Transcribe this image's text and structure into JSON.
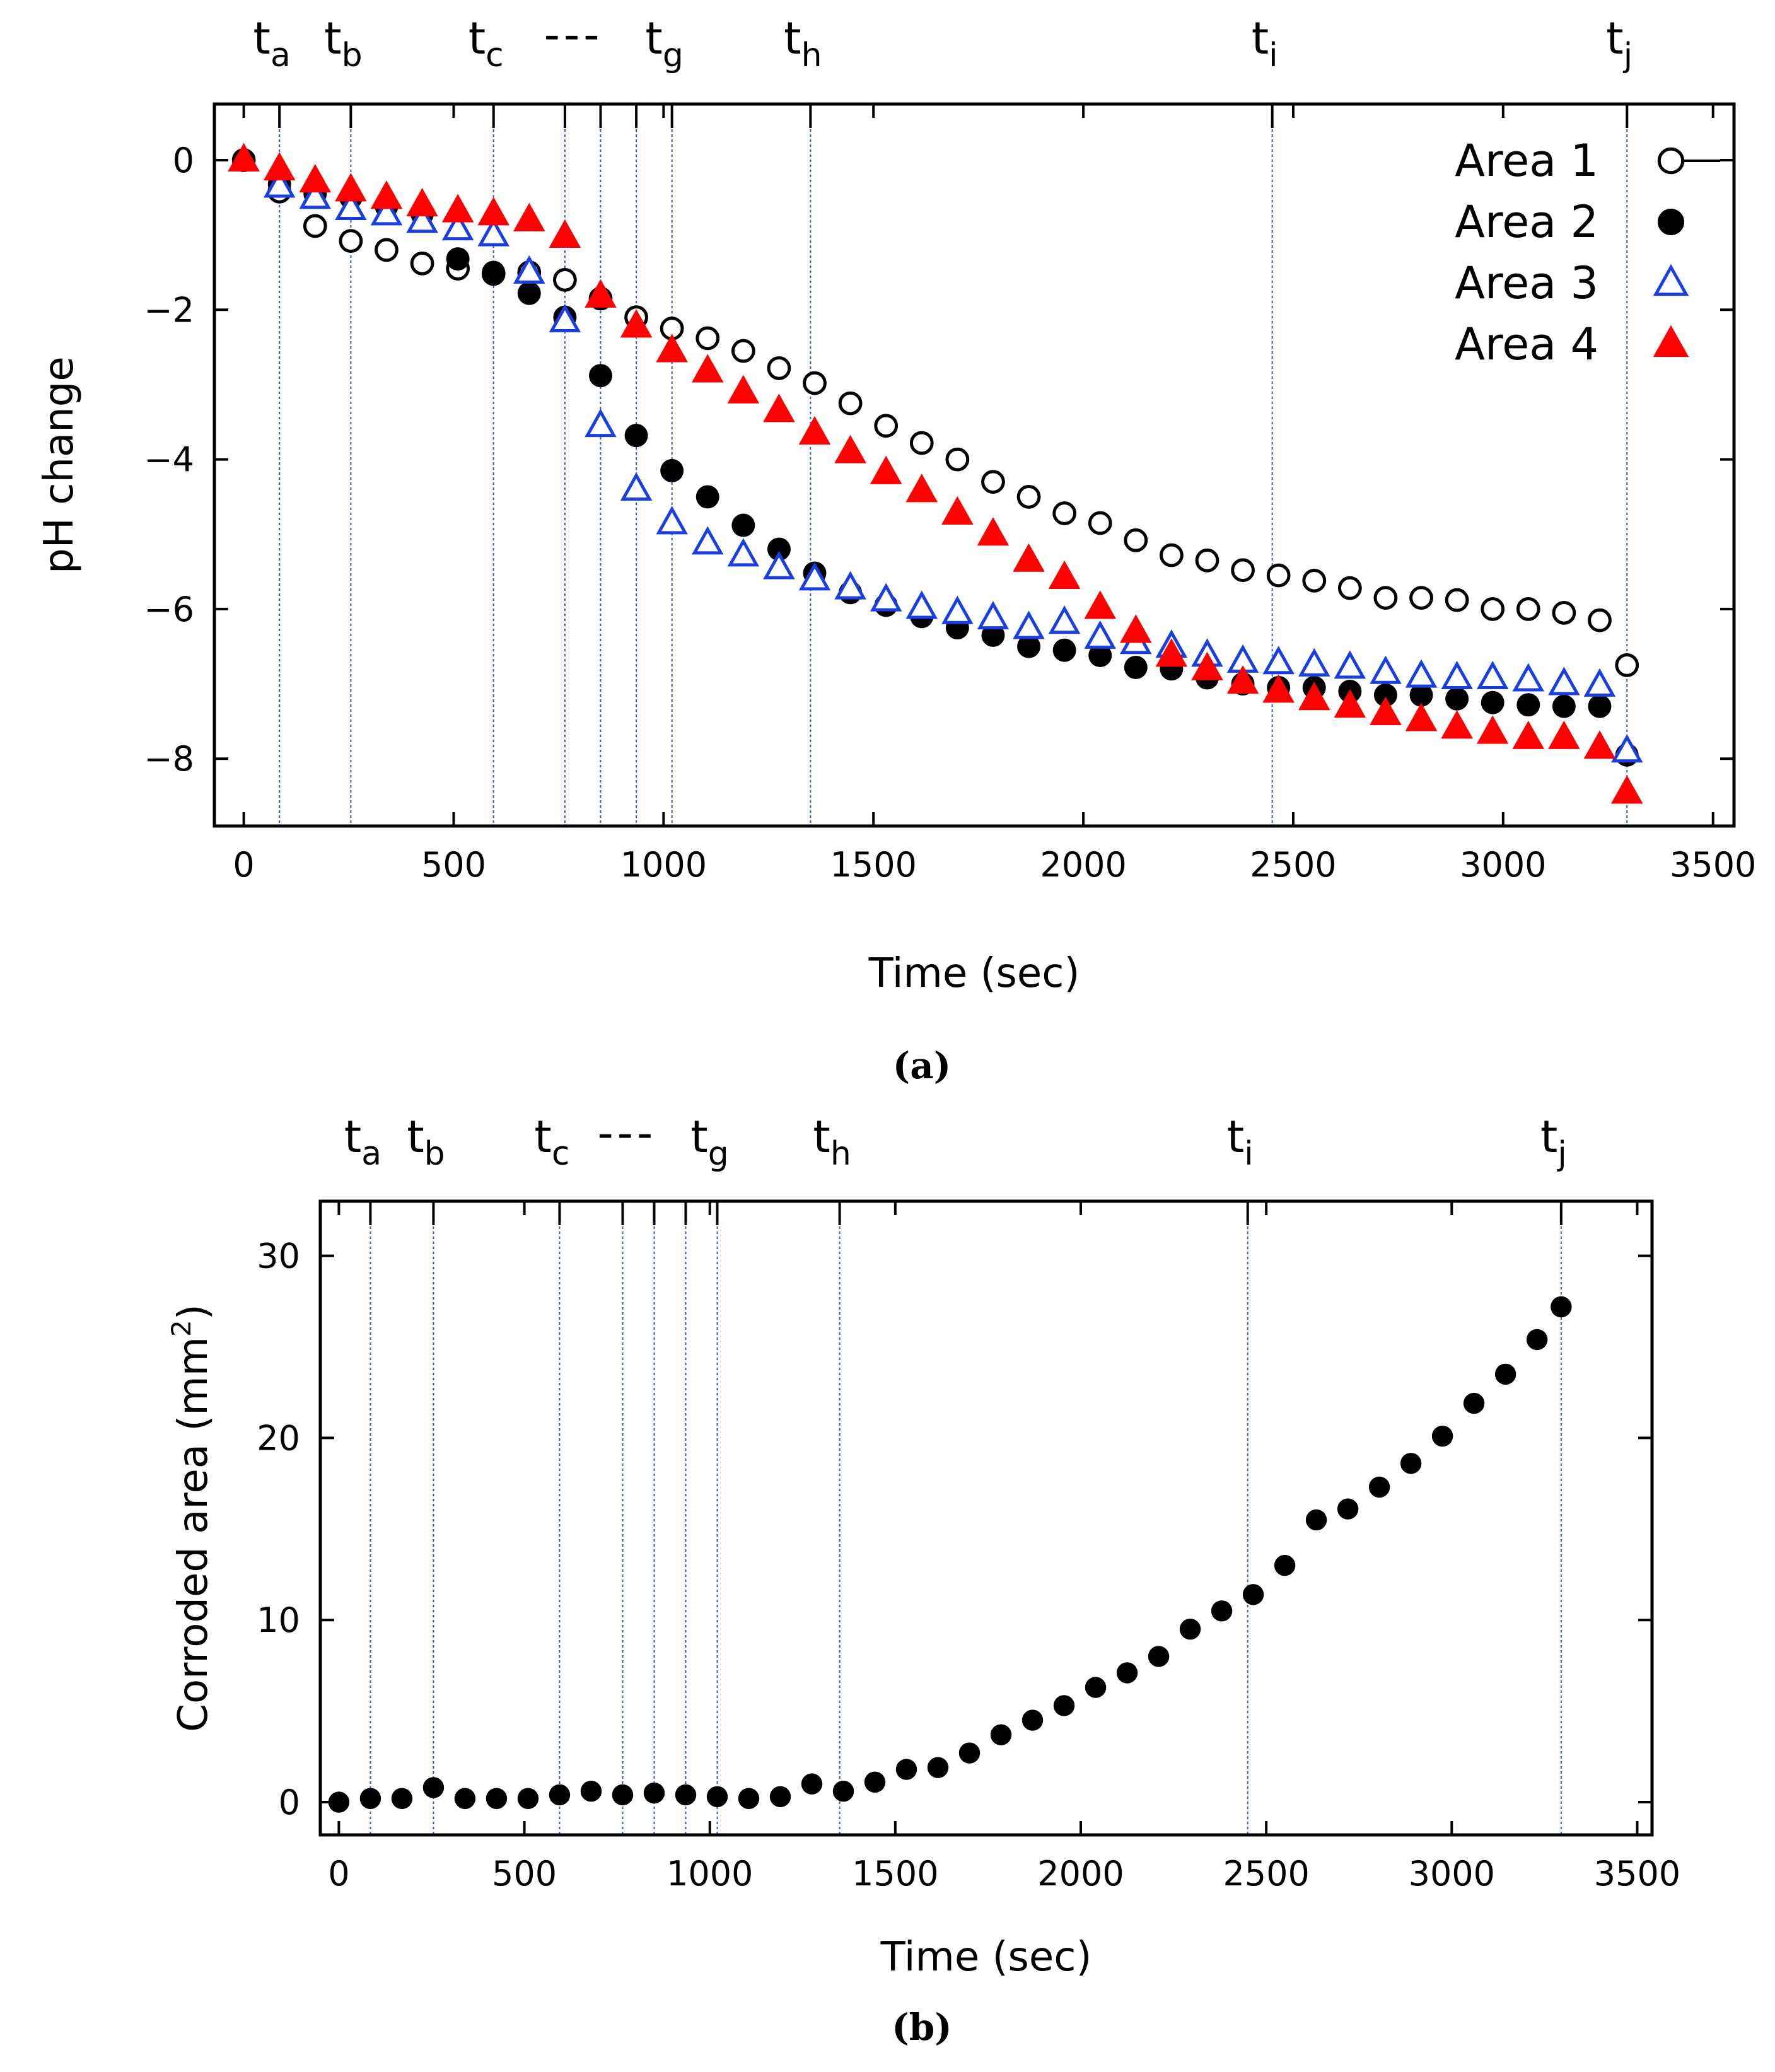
{
  "chart_data": [
    {
      "id": "a",
      "type": "scatter",
      "caption": "(a)",
      "xlabel": "Time (sec)",
      "ylabel": "pH change",
      "xlim": [
        -70,
        3550
      ],
      "ylim": [
        -8.9,
        0.75
      ],
      "xticks": [
        0,
        500,
        1000,
        1500,
        2000,
        2500,
        3000,
        3500
      ],
      "xtick_labels": [
        "0",
        "500",
        "1000",
        "1500",
        "2000",
        "2500",
        "3000",
        "3500"
      ],
      "yticks": [
        0,
        -2,
        -4,
        -6,
        -8
      ],
      "ytick_labels": [
        "0",
        "−2",
        "−4",
        "−6",
        "−8"
      ],
      "legend_position": "top-right",
      "events": [
        {
          "label": "t",
          "sub": "a",
          "x": 85
        },
        {
          "label": "t",
          "sub": "b",
          "x": 255
        },
        {
          "label": "t",
          "sub": "c",
          "x": 595
        },
        {
          "x": 765
        },
        {
          "x": 850
        },
        {
          "x": 935
        },
        {
          "label": "t",
          "sub": "g",
          "x": 1020
        },
        {
          "label": "t",
          "sub": "h",
          "x": 1350
        },
        {
          "label": "t",
          "sub": "i",
          "x": 2450
        },
        {
          "label": "t",
          "sub": "j",
          "x": 3295
        }
      ],
      "dash_annotation": "---",
      "x": [
        0,
        85,
        170,
        255,
        340,
        425,
        510,
        595,
        680,
        765,
        850,
        935,
        1020,
        1105,
        1190,
        1275,
        1360,
        1445,
        1530,
        1615,
        1700,
        1785,
        1870,
        1955,
        2040,
        2125,
        2210,
        2295,
        2380,
        2465,
        2550,
        2635,
        2720,
        2805,
        2890,
        2975,
        3060,
        3145,
        3230,
        3295
      ],
      "series": [
        {
          "name": "Area 1",
          "marker": "circle-open",
          "color": "#000000",
          "values": [
            0,
            -0.42,
            -0.88,
            -1.08,
            -1.2,
            -1.38,
            -1.45,
            -1.52,
            -1.5,
            -1.6,
            -1.85,
            -2.1,
            -2.25,
            -2.38,
            -2.55,
            -2.78,
            -2.98,
            -3.25,
            -3.55,
            -3.78,
            -4.0,
            -4.3,
            -4.5,
            -4.72,
            -4.85,
            -5.08,
            -5.28,
            -5.35,
            -5.48,
            -5.55,
            -5.62,
            -5.72,
            -5.85,
            -5.85,
            -5.88,
            -6.0,
            -6.0,
            -6.05,
            -6.15,
            -6.75
          ]
        },
        {
          "name": "Area 2",
          "marker": "circle-filled",
          "color": "#000000",
          "values": [
            0,
            -0.32,
            -0.45,
            -0.5,
            -0.62,
            -0.72,
            -1.32,
            -1.5,
            -1.78,
            -2.1,
            -2.88,
            -3.68,
            -4.15,
            -4.5,
            -4.88,
            -5.2,
            -5.52,
            -5.78,
            -5.95,
            -6.1,
            -6.25,
            -6.35,
            -6.5,
            -6.55,
            -6.62,
            -6.78,
            -6.8,
            -6.92,
            -7.0,
            -7.05,
            -7.05,
            -7.1,
            -7.15,
            -7.15,
            -7.2,
            -7.25,
            -7.28,
            -7.3,
            -7.3,
            -7.95
          ]
        },
        {
          "name": "Area 3",
          "marker": "triangle-open",
          "color": "#1a3fe0",
          "values": [
            0,
            -0.35,
            -0.5,
            -0.65,
            -0.72,
            -0.82,
            -0.92,
            -1.0,
            -1.5,
            -2.15,
            -3.55,
            -4.4,
            -4.85,
            -5.12,
            -5.28,
            -5.45,
            -5.6,
            -5.72,
            -5.88,
            -5.98,
            -6.05,
            -6.12,
            -6.25,
            -6.18,
            -6.38,
            -6.45,
            -6.5,
            -6.62,
            -6.7,
            -6.72,
            -6.75,
            -6.78,
            -6.85,
            -6.9,
            -6.92,
            -6.92,
            -6.95,
            -7.0,
            -7.02,
            -7.9
          ]
        },
        {
          "name": "Area 4",
          "marker": "triangle-filled",
          "color": "#ff0000",
          "values": [
            0,
            -0.12,
            -0.28,
            -0.4,
            -0.5,
            -0.6,
            -0.68,
            -0.72,
            -0.8,
            -1.02,
            -1.82,
            -2.22,
            -2.55,
            -2.82,
            -3.1,
            -3.35,
            -3.65,
            -3.9,
            -4.18,
            -4.42,
            -4.72,
            -5.0,
            -5.35,
            -5.58,
            -5.98,
            -6.3,
            -6.62,
            -6.8,
            -6.98,
            -7.1,
            -7.2,
            -7.3,
            -7.4,
            -7.48,
            -7.58,
            -7.65,
            -7.72,
            -7.72,
            -7.85,
            -8.45
          ]
        }
      ]
    },
    {
      "id": "b",
      "type": "scatter",
      "caption": "(b)",
      "xlabel": "Time (sec)",
      "ylabel": "Corroded area (mm",
      "ylabel_sup": "2",
      "ylabel_close": ")",
      "xlim": [
        -50,
        3540
      ],
      "ylim": [
        -1.8,
        33
      ],
      "xticks": [
        0,
        500,
        1000,
        1500,
        2000,
        2500,
        3000,
        3500
      ],
      "xtick_labels": [
        "0",
        "500",
        "1000",
        "1500",
        "2000",
        "2500",
        "3000",
        "3500"
      ],
      "yticks": [
        0,
        10,
        20,
        30
      ],
      "ytick_labels": [
        "0",
        "10",
        "20",
        "30"
      ],
      "events": [
        {
          "label": "t",
          "sub": "a",
          "x": 85
        },
        {
          "label": "t",
          "sub": "b",
          "x": 255
        },
        {
          "label": "t",
          "sub": "c",
          "x": 595
        },
        {
          "x": 765
        },
        {
          "x": 850
        },
        {
          "x": 935
        },
        {
          "label": "t",
          "sub": "g",
          "x": 1020
        },
        {
          "label": "t",
          "sub": "h",
          "x": 1350
        },
        {
          "label": "t",
          "sub": "i",
          "x": 2450
        },
        {
          "label": "t",
          "sub": "j",
          "x": 3295
        }
      ],
      "dash_annotation": "---",
      "x": [
        0,
        85,
        170,
        255,
        340,
        425,
        510,
        595,
        680,
        765,
        850,
        935,
        1020,
        1105,
        1190,
        1275,
        1360,
        1445,
        1530,
        1615,
        1700,
        1785,
        1870,
        1955,
        2040,
        2125,
        2210,
        2295,
        2380,
        2465,
        2550,
        2635,
        2720,
        2805,
        2890,
        2975,
        3060,
        3145,
        3230,
        3295
      ],
      "series": [
        {
          "name": "Corroded area",
          "marker": "circle-filled",
          "color": "#000000",
          "values": [
            0,
            0.2,
            0.2,
            0.8,
            0.2,
            0.2,
            0.2,
            0.4,
            0.6,
            0.4,
            0.5,
            0.4,
            0.3,
            0.2,
            0.3,
            1.0,
            0.6,
            1.1,
            1.8,
            1.9,
            2.7,
            3.7,
            4.5,
            5.3,
            6.3,
            7.1,
            8.0,
            9.5,
            10.5,
            11.4,
            13.0,
            15.5,
            16.1,
            17.3,
            18.6,
            20.1,
            21.9,
            23.5,
            25.4,
            27.2
          ]
        }
      ]
    }
  ]
}
